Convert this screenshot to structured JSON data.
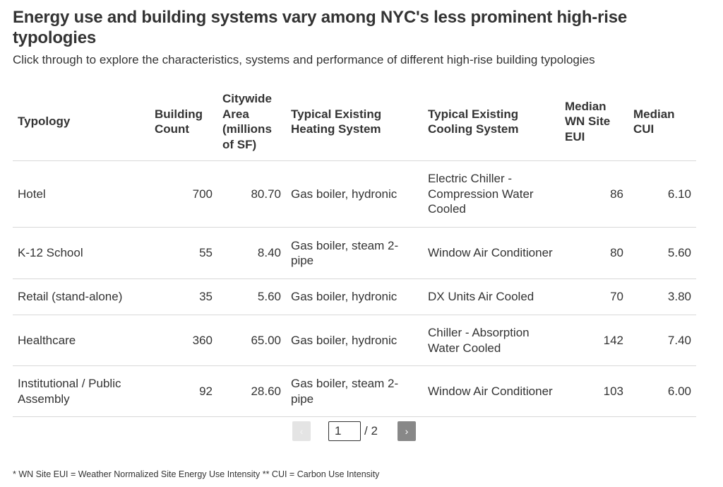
{
  "header": {
    "title": "Energy use and building systems vary among NYC's less prominent high-rise typologies",
    "subtitle": "Click through to explore the characteristics, systems and performance of different high-rise building typologies"
  },
  "chart_data": {
    "type": "table",
    "columns": [
      "Typology",
      "Building Count",
      "Citywide Area (millions of SF)",
      "Typical Existing Heating System",
      "Typical Existing Cooling System",
      "Median WN Site EUI",
      "Median CUI"
    ],
    "rows": [
      [
        "Hotel",
        "700",
        "80.70",
        "Gas boiler, hydronic",
        "Electric Chiller - Compression Water Cooled",
        "86",
        "6.10"
      ],
      [
        "K-12 School",
        "55",
        "8.40",
        "Gas boiler, steam 2-pipe",
        "Window Air Conditioner",
        "80",
        "5.60"
      ],
      [
        "Retail (stand-alone)",
        "35",
        "5.60",
        "Gas boiler, hydronic",
        "DX Units Air Cooled",
        "70",
        "3.80"
      ],
      [
        "Healthcare",
        "360",
        "65.00",
        "Gas boiler, hydronic",
        "Chiller - Absorption Water Cooled",
        "142",
        "7.40"
      ],
      [
        "Institutional / Public Assembly",
        "92",
        "28.60",
        "Gas boiler, steam 2-pipe",
        "Window Air Conditioner",
        "103",
        "6.00"
      ]
    ]
  },
  "pagination": {
    "prev_label": "‹",
    "next_label": "›",
    "current_page": "1",
    "total_label": "/ 2"
  },
  "footnote": "* WN Site EUI = Weather Normalized Site Energy Use Intensity ** CUI = Carbon Use Intensity"
}
